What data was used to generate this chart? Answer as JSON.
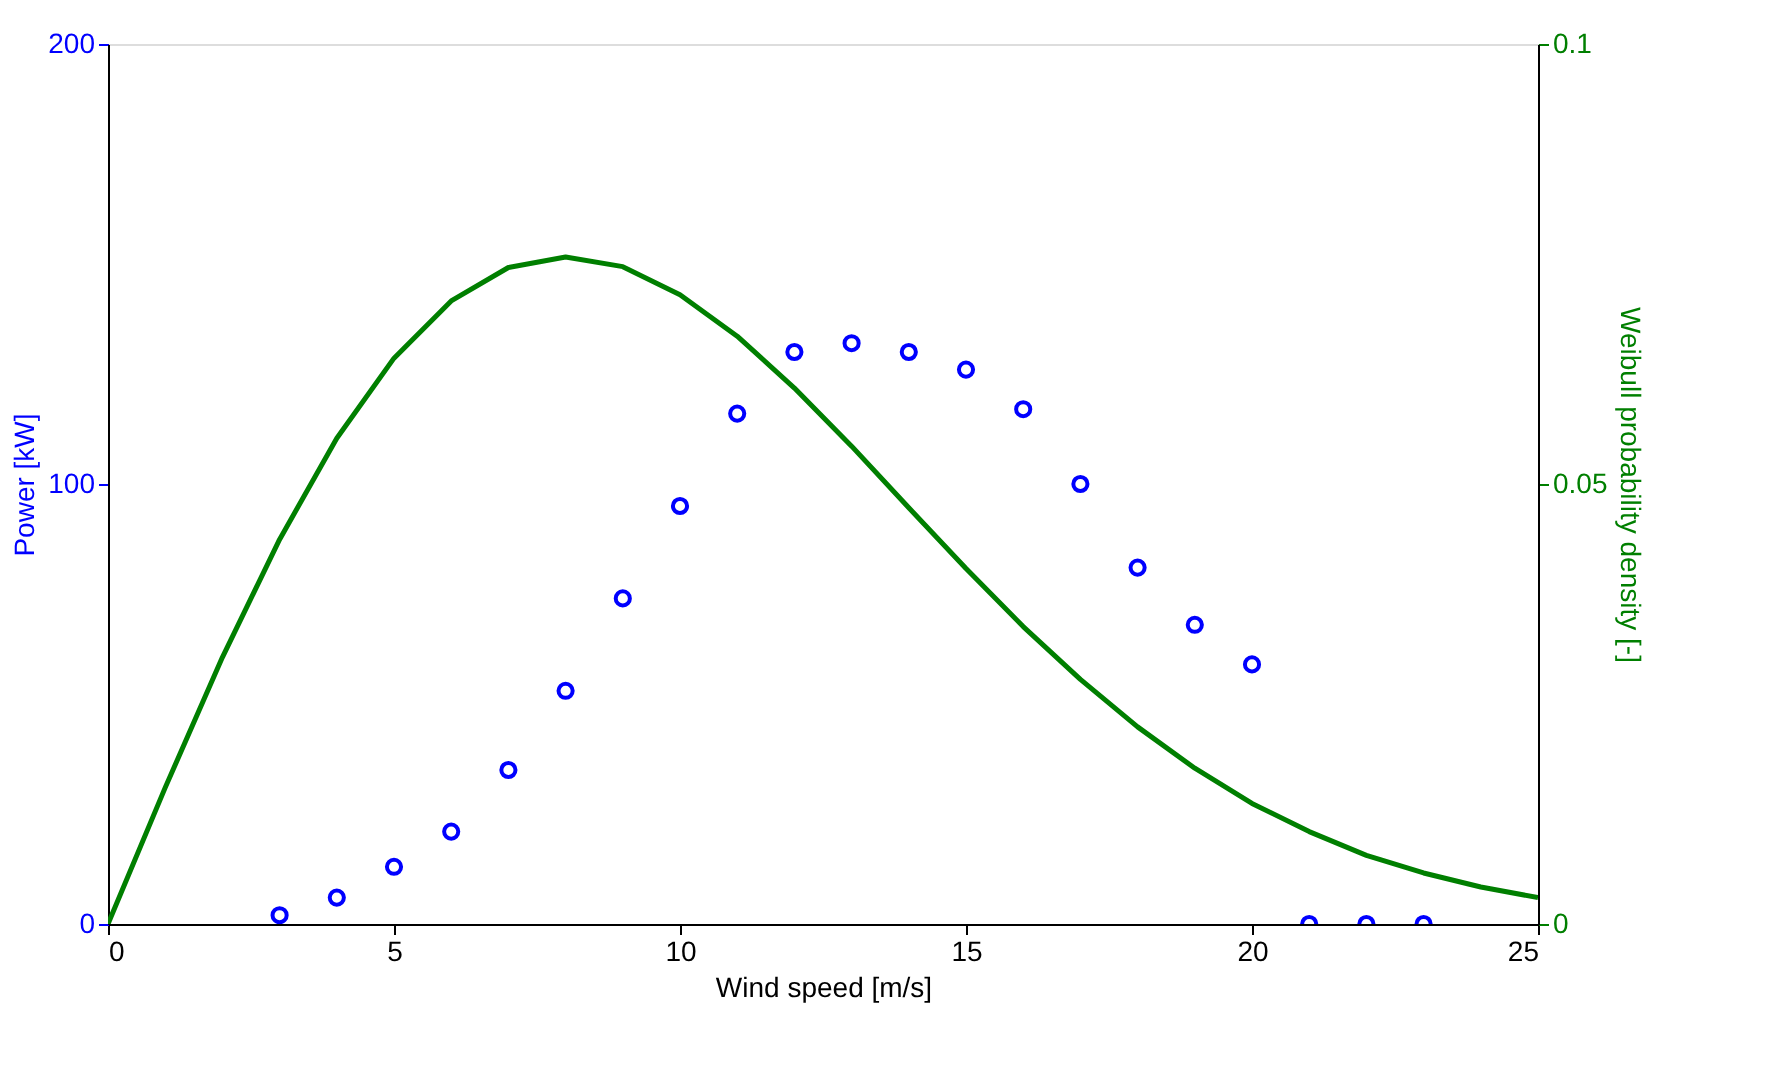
{
  "chart_data": {
    "type": "scatter",
    "xlabel": "Wind speed [m/s]",
    "ylabel": "Power [kW]",
    "y2label": "Weibull probability density [-]",
    "xlim": [
      0,
      25
    ],
    "xticks": [
      0,
      5,
      10,
      15,
      20,
      25
    ],
    "ylim": [
      0,
      200
    ],
    "yticks": [
      0,
      100,
      200
    ],
    "y2lim": [
      0,
      0.1
    ],
    "y2ticks": [
      0,
      0.05,
      0.1
    ],
    "grid": false,
    "series": [
      {
        "marker": "circle",
        "color": "#0000ff",
        "x": [
          3,
          4,
          5,
          6,
          7,
          8,
          9,
          10,
          11,
          12,
          13,
          14,
          15,
          16,
          17,
          18,
          19,
          20,
          21,
          22,
          23
        ],
        "values": [
          2,
          6,
          13,
          21,
          35,
          53,
          74,
          95,
          116,
          130,
          132,
          130,
          126,
          117,
          100,
          81,
          68,
          59,
          0,
          0,
          0
        ]
      },
      {
        "type": "line",
        "marker": "none",
        "line_style": "solid",
        "axis": "y2",
        "color": "#007f00",
        "x": [
          0,
          1,
          2,
          3,
          4,
          5,
          6,
          7,
          8,
          9,
          10,
          11,
          12,
          13,
          14,
          15,
          16,
          17,
          18,
          19,
          20,
          21,
          22,
          23,
          24,
          25
        ],
        "values": [
          0,
          0.0155,
          0.0303,
          0.0437,
          0.0552,
          0.0643,
          0.0708,
          0.0746,
          0.0758,
          0.0747,
          0.0715,
          0.0668,
          0.0609,
          0.0543,
          0.0473,
          0.0404,
          0.0338,
          0.0278,
          0.0224,
          0.0177,
          0.0137,
          0.0105,
          0.0078,
          0.0058,
          0.0042,
          0.003
        ]
      }
    ]
  }
}
